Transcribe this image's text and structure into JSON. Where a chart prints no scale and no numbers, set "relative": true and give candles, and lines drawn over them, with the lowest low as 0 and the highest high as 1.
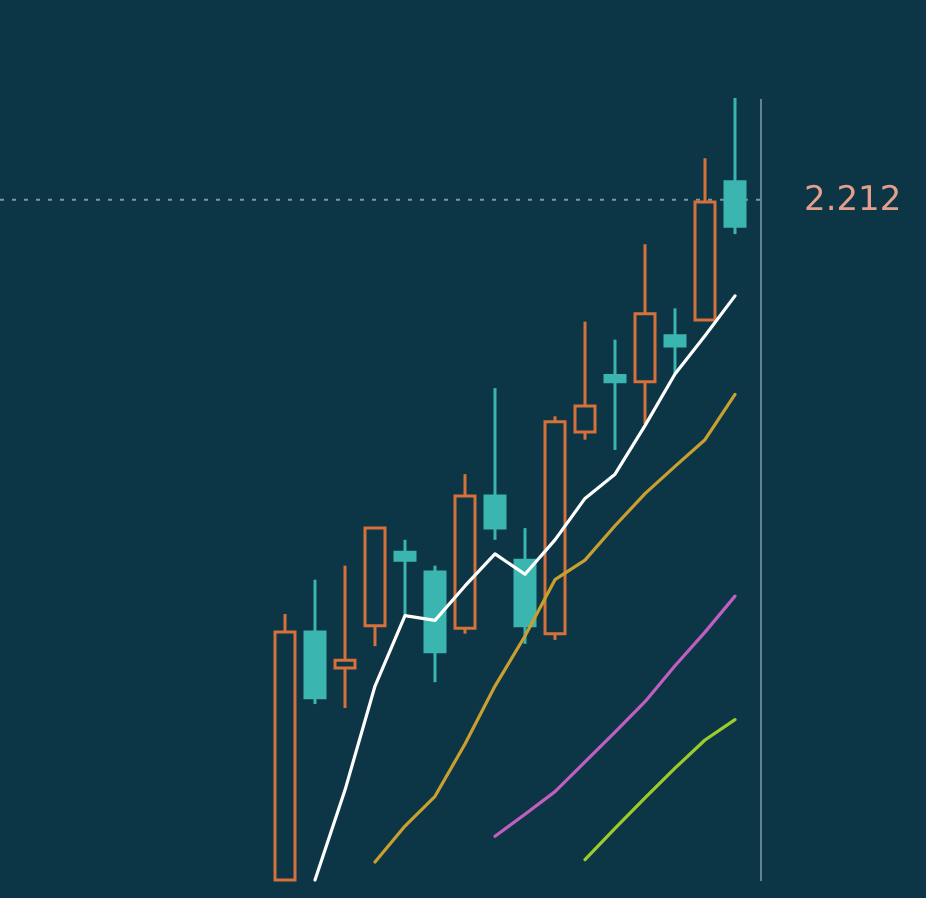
{
  "chart_data": {
    "type": "candlestick",
    "relative": true,
    "categories": [
      null,
      null,
      null,
      null,
      null,
      null,
      null,
      null,
      null,
      null,
      null,
      null,
      null,
      null,
      null,
      null
    ],
    "ohlc": [
      [
        0,
        0.34,
        0,
        0.317
      ],
      [
        0.317,
        0.384,
        0.225,
        0.233
      ],
      [
        0.271,
        0.402,
        0.22,
        0.281
      ],
      [
        0.325,
        0.45,
        0.299,
        0.45
      ],
      [
        0.419,
        0.435,
        0.338,
        0.409
      ],
      [
        0.394,
        0.402,
        0.253,
        0.292
      ],
      [
        0.322,
        0.519,
        0.315,
        0.491
      ],
      [
        0.491,
        0.629,
        0.435,
        0.45
      ],
      [
        0.409,
        0.45,
        0.302,
        0.325
      ],
      [
        0.315,
        0.593,
        0.307,
        0.586
      ],
      [
        0.573,
        0.714,
        0.563,
        0.606
      ],
      [
        0.645,
        0.691,
        0.55,
        0.637
      ],
      [
        0.637,
        0.813,
        0.583,
        0.724
      ],
      [
        0.696,
        0.731,
        0.647,
        0.683
      ],
      [
        0.716,
        0.923,
        0.716,
        0.867
      ],
      [
        0.893,
        1,
        0.826,
        0.836
      ]
    ],
    "colors": [
      "#d7713b",
      "#3bb5b0",
      "#d7713b",
      "#d7713b",
      "#3bb5b0",
      "#3bb5b0",
      "#d7713b",
      "#3bb5b0",
      "#3bb5b0",
      "#d7713b",
      "#d7713b",
      "#3bb5b0",
      "#d7713b",
      "#3bb5b0",
      "#d7713b",
      "#3bb5b0"
    ],
    "series": [
      {
        "type": "line",
        "color": "#ffffff",
        "values": [
          null,
          0,
          0.115,
          0.248,
          0.338,
          0.332,
          0.376,
          0.417,
          0.391,
          0.435,
          0.488,
          0.519,
          0.581,
          0.647,
          0.696,
          0.747
        ]
      },
      {
        "type": "line",
        "color": "#c9a030",
        "values": [
          null,
          null,
          null,
          0.023,
          0.069,
          0.107,
          0.174,
          0.248,
          0.312,
          0.384,
          0.409,
          0.453,
          0.494,
          0.529,
          0.563,
          0.621
        ]
      },
      {
        "type": "line",
        "color": "#c05fc0",
        "values": [
          null,
          null,
          null,
          null,
          null,
          null,
          null,
          0.056,
          0.084,
          0.113,
          0.151,
          0.189,
          0.228,
          0.274,
          0.317,
          0.363
        ]
      },
      {
        "type": "line",
        "color": "#9ccc2c",
        "values": [
          null,
          null,
          null,
          null,
          null,
          null,
          null,
          null,
          null,
          null,
          0.026,
          0.066,
          0.105,
          0.143,
          0.179,
          0.205
        ]
      }
    ],
    "ref_lines": [
      {
        "axis": "y",
        "value": 0.87,
        "color": "#7d97a0",
        "line_style": "dotted"
      }
    ],
    "annotations": [
      "2.212"
    ]
  }
}
